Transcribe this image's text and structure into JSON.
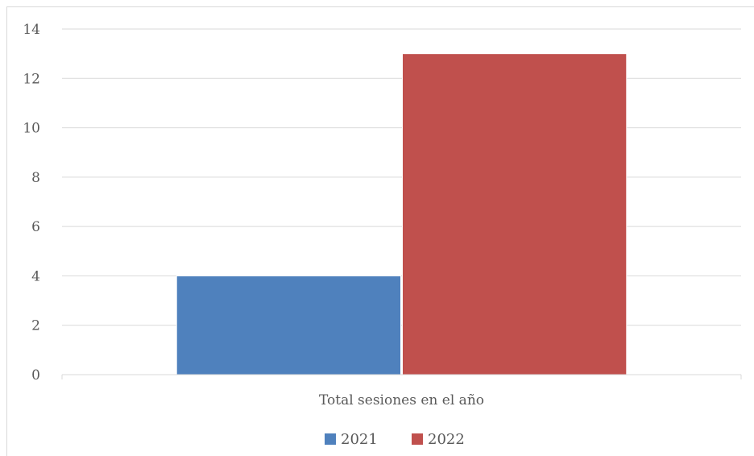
{
  "chart_data": {
    "type": "bar",
    "categories": [
      "Total sesiones en el año"
    ],
    "series": [
      {
        "name": "2021",
        "values": [
          4
        ],
        "color": "#4F81BD"
      },
      {
        "name": "2022",
        "values": [
          13
        ],
        "color": "#C0504D"
      }
    ],
    "ylim": [
      0,
      14
    ],
    "yticks": [
      0,
      2,
      4,
      6,
      8,
      10,
      12,
      14
    ],
    "grid": true,
    "legend": "bottom-center"
  }
}
